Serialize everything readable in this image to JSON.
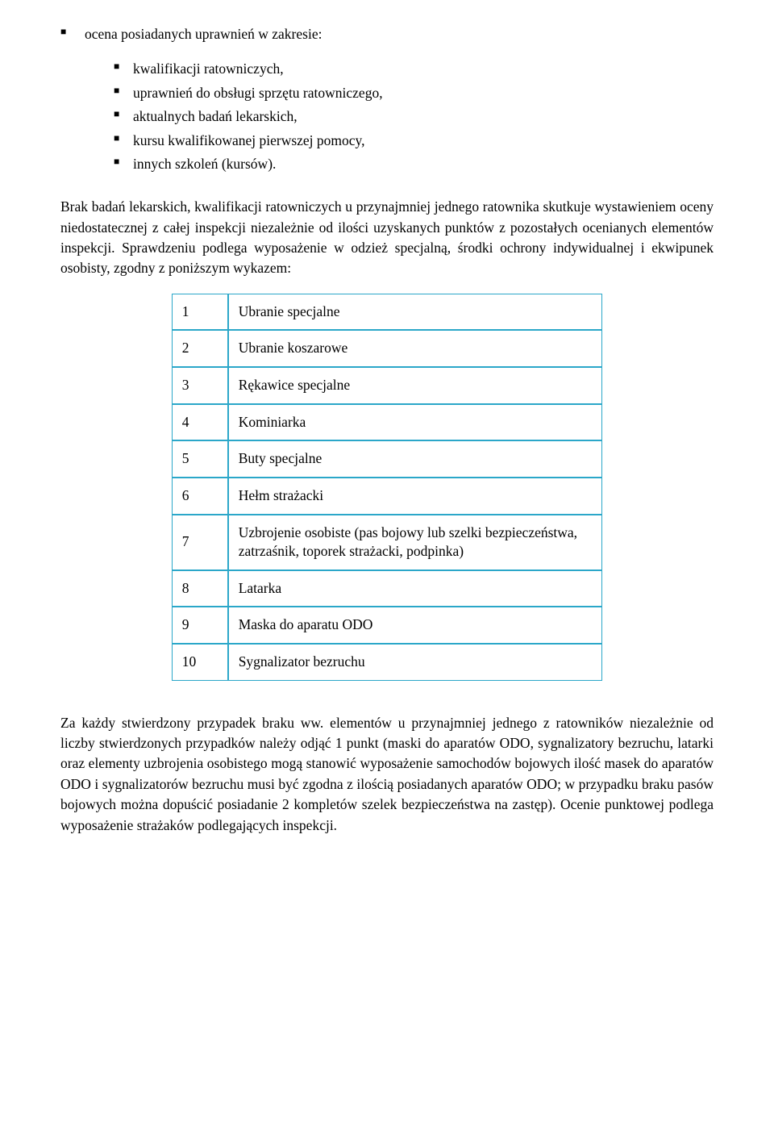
{
  "intro_line": "ocena posiadanych uprawnień w zakresie:",
  "sub_bullets": [
    "kwalifikacji ratowniczych,",
    "uprawnień do obsługi sprzętu ratowniczego,",
    "aktualnych badań lekarskich,",
    "kursu kwalifikowanej pierwszej pomocy,",
    "innych szkoleń (kursów)."
  ],
  "paragraph1": "Brak badań lekarskich, kwalifikacji ratowniczych u przynajmniej jednego ratownika skutkuje wystawieniem oceny niedostatecznej z całej inspekcji niezależnie od ilości uzyskanych punktów z pozostałych ocenianych elementów inspekcji. Sprawdzeniu podlega wyposażenie w odzież specjalną, środki ochrony indywidualnej i ekwipunek osobisty, zgodny z poniższym wykazem:",
  "table": {
    "border_color": "#2ba7c9",
    "rows": [
      {
        "num": "1",
        "label": "Ubranie specjalne"
      },
      {
        "num": "2",
        "label": "Ubranie koszarowe"
      },
      {
        "num": "3",
        "label": "Rękawice specjalne"
      },
      {
        "num": "4",
        "label": "Kominiarka"
      },
      {
        "num": "5",
        "label": "Buty specjalne"
      },
      {
        "num": "6",
        "label": "Hełm strażacki"
      },
      {
        "num": "7",
        "label": "Uzbrojenie osobiste (pas bojowy lub szelki bezpieczeństwa, zatrzaśnik, toporek strażacki, podpinka)"
      },
      {
        "num": "8",
        "label": "Latarka"
      },
      {
        "num": "9",
        "label": "Maska do aparatu ODO"
      },
      {
        "num": "10",
        "label": "Sygnalizator bezruchu"
      }
    ]
  },
  "paragraph2": "Za każdy stwierdzony przypadek braku ww. elementów u przynajmniej jednego z ratowników niezależnie od liczby stwierdzonych przypadków należy odjąć 1 punkt (maski do aparatów ODO, sygnalizatory bezruchu, latarki oraz elementy uzbrojenia osobistego mogą stanowić wyposażenie samochodów bojowych ilość masek do aparatów ODO i sygnalizatorów bezruchu musi być zgodna z ilością posiadanych aparatów ODO; w przypadku braku pasów bojowych można dopuścić posiadanie 2 kompletów szelek bezpieczeństwa na zastęp). Ocenie punktowej podlega wyposażenie strażaków podlegających inspekcji."
}
